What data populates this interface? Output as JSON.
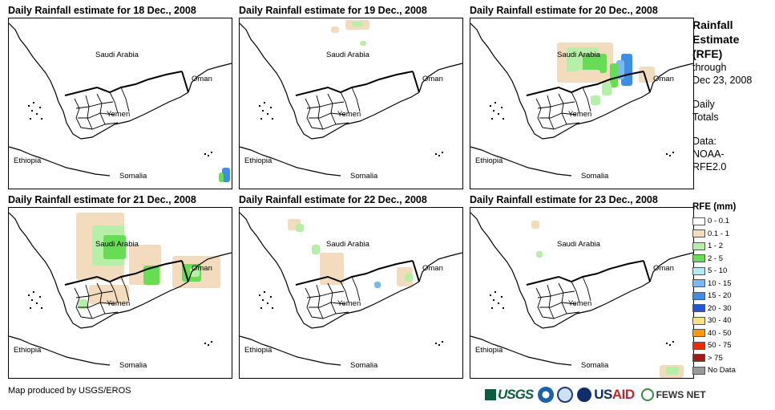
{
  "panels": [
    {
      "title": "Daily Rainfall estimate for 18 Dec., 2008"
    },
    {
      "title": "Daily Rainfall estimate for 19 Dec., 2008"
    },
    {
      "title": "Daily Rainfall estimate for 20 Dec., 2008"
    },
    {
      "title": "Daily Rainfall estimate for 21 Dec., 2008"
    },
    {
      "title": "Daily Rainfall estimate for 22 Dec., 2008"
    },
    {
      "title": "Daily Rainfall estimate for 23 Dec., 2008"
    }
  ],
  "map_labels": {
    "saudi": "Saudi Arabia",
    "oman": "Oman",
    "yemen": "Yemen",
    "ethiopia": "Ethiopia",
    "somalia": "Somalia"
  },
  "side": {
    "title_l1": "Rainfall",
    "title_l2": "Estimate",
    "title_l3": "(RFE)",
    "through": "through",
    "date": "Dec 23, 2008",
    "daily": "Daily",
    "totals": "Totals",
    "data_label": "Data:",
    "source_l1": "NOAA-",
    "source_l2": "RFE2.0"
  },
  "legend": {
    "title": "RFE (mm)",
    "items": [
      {
        "label": "0 - 0.1",
        "color": "#ffffff"
      },
      {
        "label": "0.1 - 1",
        "color": "#f3dcbd"
      },
      {
        "label": "1 - 2",
        "color": "#b6f0a8"
      },
      {
        "label": "2 - 5",
        "color": "#66dd55"
      },
      {
        "label": "5 - 10",
        "color": "#b3eaf7"
      },
      {
        "label": "10 - 15",
        "color": "#7ab8ee"
      },
      {
        "label": "15 - 20",
        "color": "#3d8ee8"
      },
      {
        "label": "20 - 30",
        "color": "#1f55d6"
      },
      {
        "label": "30 - 40",
        "color": "#fbe08a"
      },
      {
        "label": "40 - 50",
        "color": "#f59a0c"
      },
      {
        "label": "50 - 75",
        "color": "#ec2a0c"
      },
      {
        "label": "> 75",
        "color": "#9e1b1b"
      },
      {
        "label": "No Data",
        "color": "#999999"
      }
    ]
  },
  "credit": "Map produced by USGS/EROS",
  "logos": {
    "usgs": "USGS",
    "usaid_a": "US",
    "usaid_b": "AID",
    "fewsnet": "FEWS NET"
  }
}
